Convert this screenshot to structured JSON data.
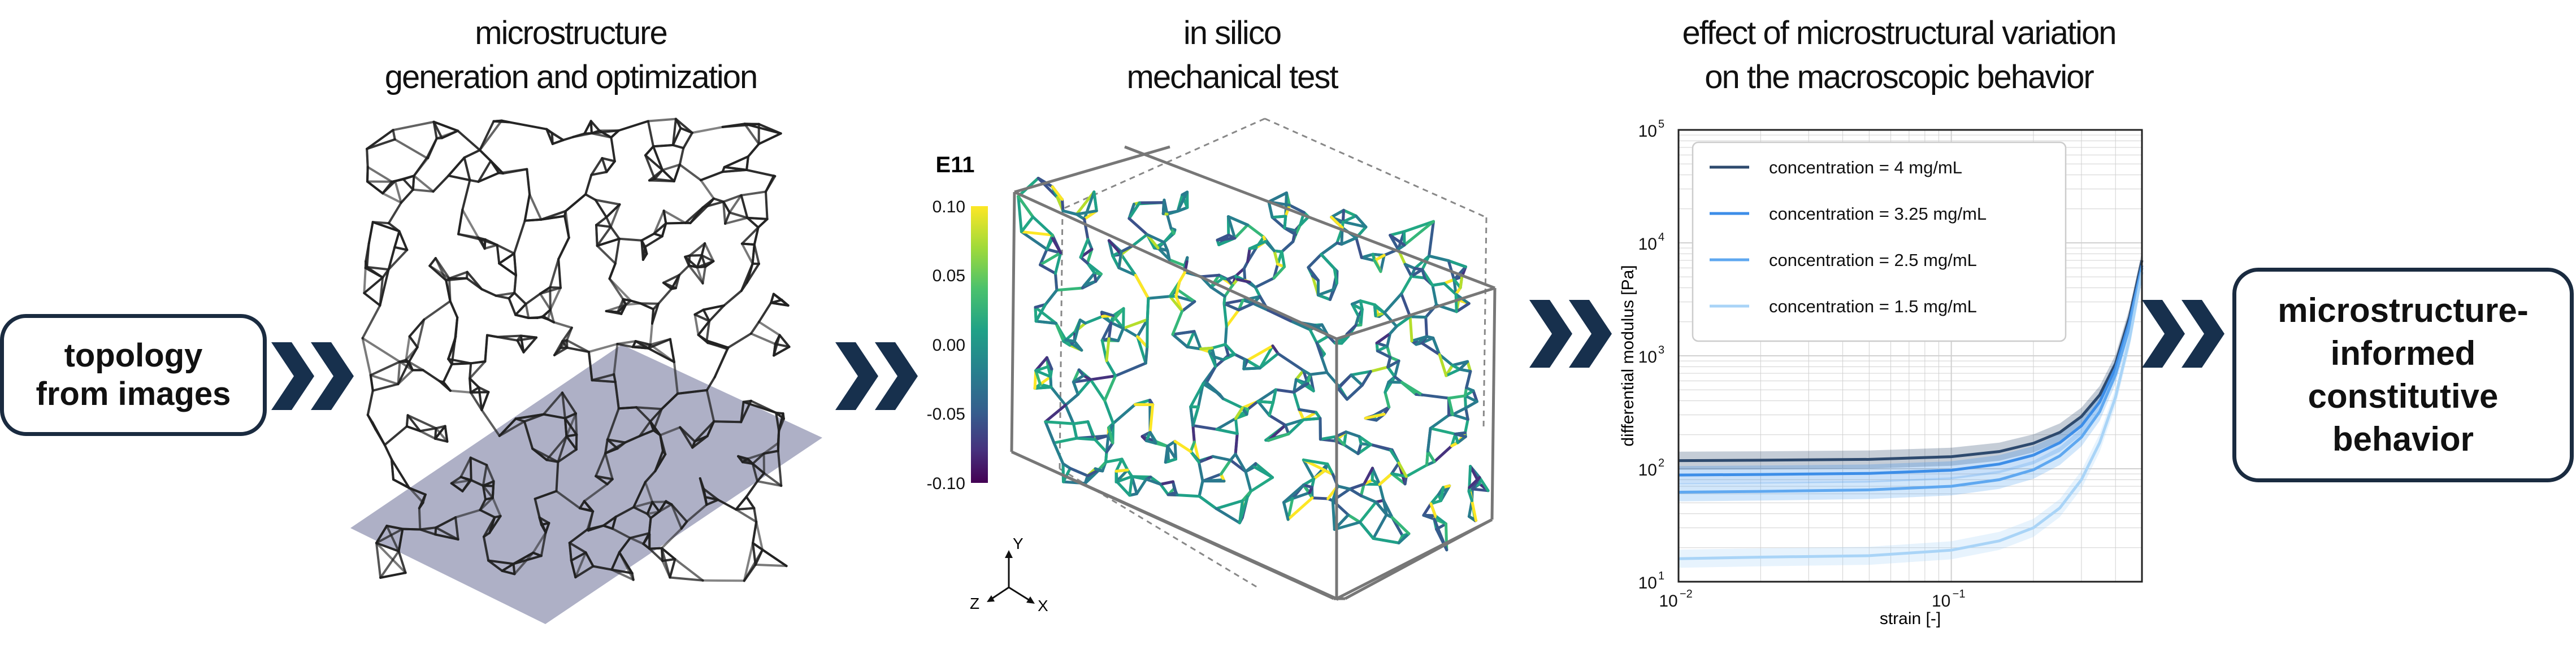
{
  "colors": {
    "navy": "#1a2b40",
    "chevron": "#17304d",
    "box_border": "#1a2b40",
    "plane": "#9a9cb8"
  },
  "left_box": {
    "line1": "topology",
    "line2": "from images"
  },
  "right_box": {
    "line1": "microstructure-",
    "line2": "informed",
    "line3": "constitutive",
    "line4": "behavior"
  },
  "stage1": {
    "title_line1": "microstructure",
    "title_line2": "generation and optimization"
  },
  "stage2": {
    "title_line1": "in silico",
    "title_line2": "mechanical test",
    "colorbar": {
      "label": "E11",
      "ticks": [
        "0.10",
        "0.05",
        "0.00",
        "-0.05",
        "-0.10"
      ],
      "colormap": "viridis"
    },
    "axes_triad": {
      "y": "Y",
      "z": "Z",
      "x": "X"
    }
  },
  "stage3": {
    "title_line1": "effect of microstructural variation",
    "title_line2": "on the macroscopic behavior"
  },
  "chart_data": {
    "type": "line",
    "xlabel": "strain [-]",
    "ylabel": "differential modulus [Pa]",
    "xscale": "log",
    "yscale": "log",
    "xlim": [
      0.01,
      0.5
    ],
    "ylim": [
      10,
      100000
    ],
    "xticks": [
      "10",
      "10"
    ],
    "xtick_exponents": [
      "−2",
      "−1"
    ],
    "yticks": [
      "10",
      "10",
      "10",
      "10",
      "10"
    ],
    "ytick_exponents": [
      "1",
      "2",
      "3",
      "4",
      "5"
    ],
    "grid": true,
    "legend_position": "top-left",
    "x": [
      0.01,
      0.02,
      0.05,
      0.1,
      0.15,
      0.2,
      0.25,
      0.3,
      0.35,
      0.4,
      0.45,
      0.5
    ],
    "series": [
      {
        "name": "concentration = 4 mg/mL",
        "color": "#2e4a6e",
        "values": [
          118,
          119,
          121,
          128,
          142,
          168,
          210,
          290,
          450,
          850,
          2200,
          7000
        ]
      },
      {
        "name": "concentration = 3.25 mg/mL",
        "color": "#3d8ee8",
        "values": [
          88,
          89,
          91,
          97,
          110,
          132,
          170,
          240,
          390,
          780,
          2000,
          6300
        ]
      },
      {
        "name": "concentration = 2.5 mg/mL",
        "color": "#5fa8f0",
        "values": [
          62,
          63,
          65,
          70,
          80,
          98,
          130,
          190,
          320,
          680,
          1800,
          6000
        ]
      },
      {
        "name": "concentration = 1.5 mg/mL",
        "color": "#a9d4f7",
        "values": [
          16,
          16.5,
          17,
          19,
          23,
          30,
          45,
          80,
          170,
          430,
          1400,
          5500
        ]
      }
    ]
  }
}
